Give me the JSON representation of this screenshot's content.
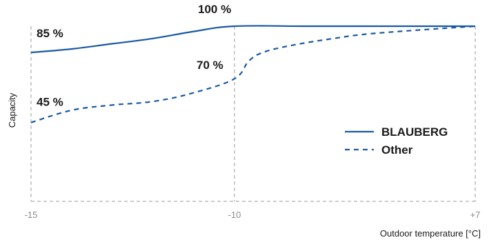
{
  "chart_data": {
    "type": "line",
    "xlabel": "Outdoor temperature [°C]",
    "ylabel": "Capacity",
    "x_ticks": [
      "-15",
      "-10",
      "+7"
    ],
    "ylim": [
      0,
      105
    ],
    "grid": "vertical dashed at x ticks",
    "legend_position": "right",
    "series": [
      {
        "name": "BLAUBERG",
        "style": "solid",
        "color": "#1757a4",
        "points": [
          [
            -15,
            85
          ],
          [
            -14,
            87
          ],
          [
            -13,
            90
          ],
          [
            -12,
            93
          ],
          [
            -11,
            97
          ],
          [
            -10,
            100
          ],
          [
            -5,
            100
          ],
          [
            0,
            100
          ],
          [
            7,
            100
          ]
        ]
      },
      {
        "name": "Other",
        "style": "dashed",
        "color": "#1757a4",
        "points": [
          [
            -15,
            45
          ],
          [
            -14,
            52
          ],
          [
            -13,
            55
          ],
          [
            -12,
            57
          ],
          [
            -11,
            62
          ],
          [
            -10,
            70
          ],
          [
            -9,
            80
          ],
          [
            -8,
            85
          ],
          [
            -6,
            89
          ],
          [
            -3,
            93
          ],
          [
            0,
            96
          ],
          [
            7,
            100
          ]
        ]
      }
    ],
    "annotations": [
      {
        "text": "85 %",
        "x": -15,
        "y": 85
      },
      {
        "text": "100 %",
        "x": -10,
        "y": 100
      },
      {
        "text": "70 %",
        "x": -10,
        "y": 70
      },
      {
        "text": "45 %",
        "x": -15,
        "y": 45
      }
    ]
  }
}
